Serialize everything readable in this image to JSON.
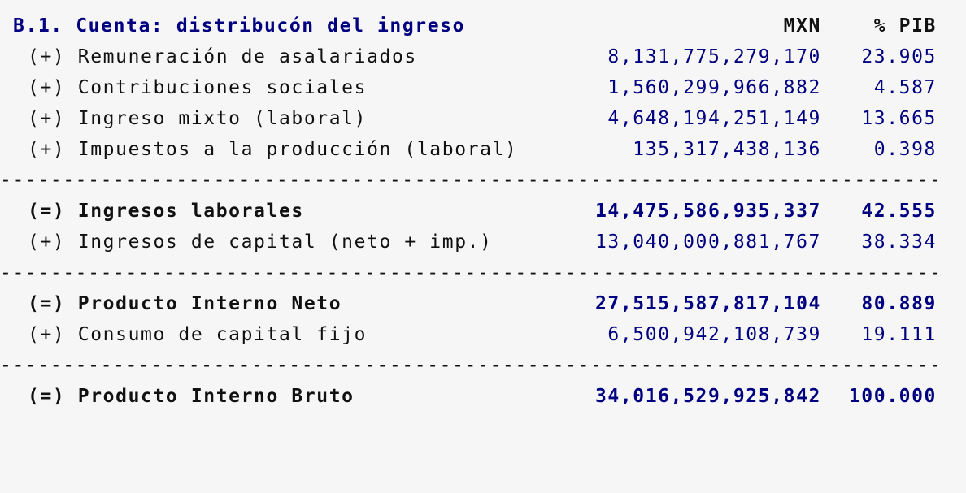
{
  "header": {
    "title": "B.1. Cuenta: distribucón del ingreso",
    "col_mxn": "MXN",
    "col_pib": "% PIB"
  },
  "rows": [
    {
      "label": "(+) Remuneración de asalariados",
      "mxn": "8,131,775,279,170",
      "pib": "23.905",
      "bold": false
    },
    {
      "label": "(+) Contribuciones sociales",
      "mxn": "1,560,299,966,882",
      "pib": "4.587",
      "bold": false
    },
    {
      "label": "(+) Ingreso mixto (laboral)",
      "mxn": "4,648,194,251,149",
      "pib": "13.665",
      "bold": false
    },
    {
      "label": "(+) Impuestos a la producción (laboral)",
      "mxn": "135,317,438,136",
      "pib": "0.398",
      "bold": false
    },
    {
      "label": "(=) Ingresos laborales",
      "mxn": "14,475,586,935,337",
      "pib": "42.555",
      "bold": true
    },
    {
      "label": "(+) Ingresos de capital (neto + imp.)",
      "mxn": "13,040,000,881,767",
      "pib": "38.334",
      "bold": false
    },
    {
      "label": "(=) Producto Interno Neto",
      "mxn": "27,515,587,817,104",
      "pib": "80.889",
      "bold": true
    },
    {
      "label": "(+) Consumo de capital fijo",
      "mxn": "6,500,942,108,739",
      "pib": "19.111",
      "bold": false
    },
    {
      "label": "(=) Producto Interno Bruto",
      "mxn": "34,016,529,925,842",
      "pib": "100.000",
      "bold": true
    }
  ],
  "divider": "------------------------------------------------------------------------------------------------------"
}
